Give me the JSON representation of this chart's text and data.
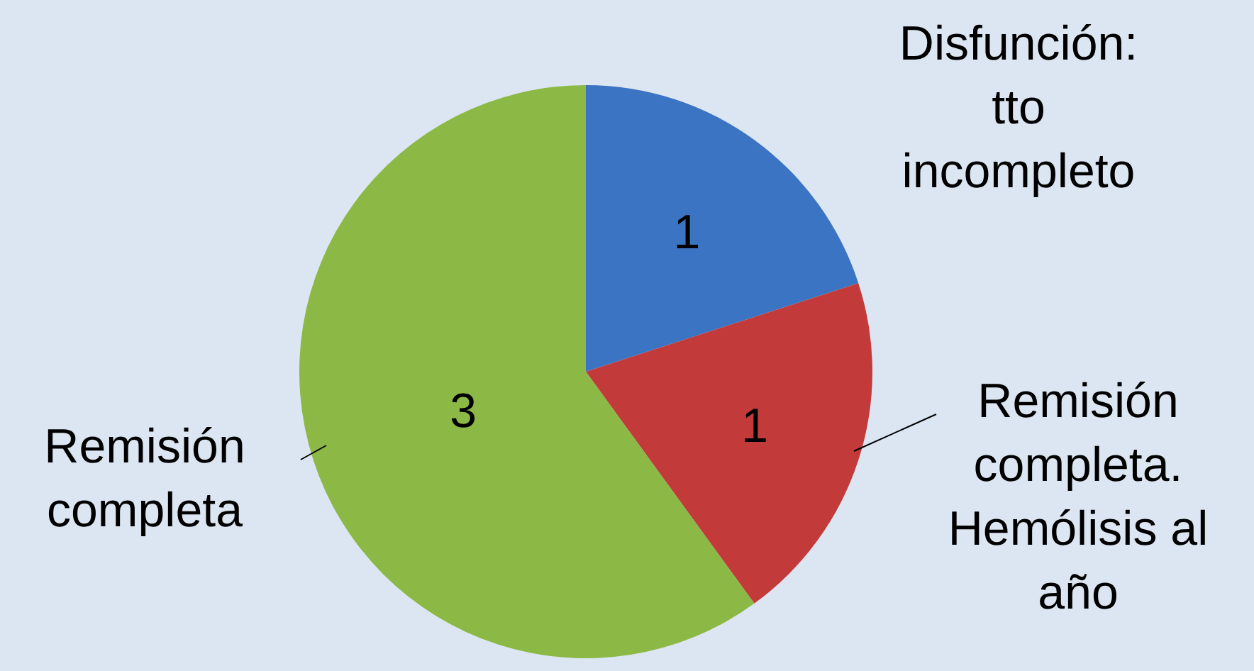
{
  "chart_data": {
    "type": "pie",
    "categories": [
      "Disfunción: tto incompleto",
      "Remisión completa. Hemólisis al año",
      "Remisión completa"
    ],
    "values": [
      1,
      1,
      3
    ],
    "colors": [
      "#3b74c2",
      "#c23b3a",
      "#8cb845"
    ],
    "data_labels": true,
    "legend": false
  }
}
